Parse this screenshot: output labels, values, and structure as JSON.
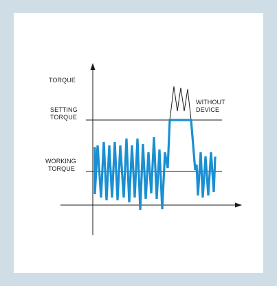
{
  "diagram": {
    "y_axis_label": "TORQUE",
    "setting_label_line1": "SETTING",
    "setting_label_line2": "TORQUE",
    "working_label_line1": "WORKING",
    "working_label_line2": "TORQUE",
    "without_label_line1": "WITHOUT",
    "without_label_line2": "DEVICE"
  },
  "colors": {
    "border": "#cfdde6",
    "signal": "#1a8fd1",
    "axes": "#1a1a1a"
  }
}
